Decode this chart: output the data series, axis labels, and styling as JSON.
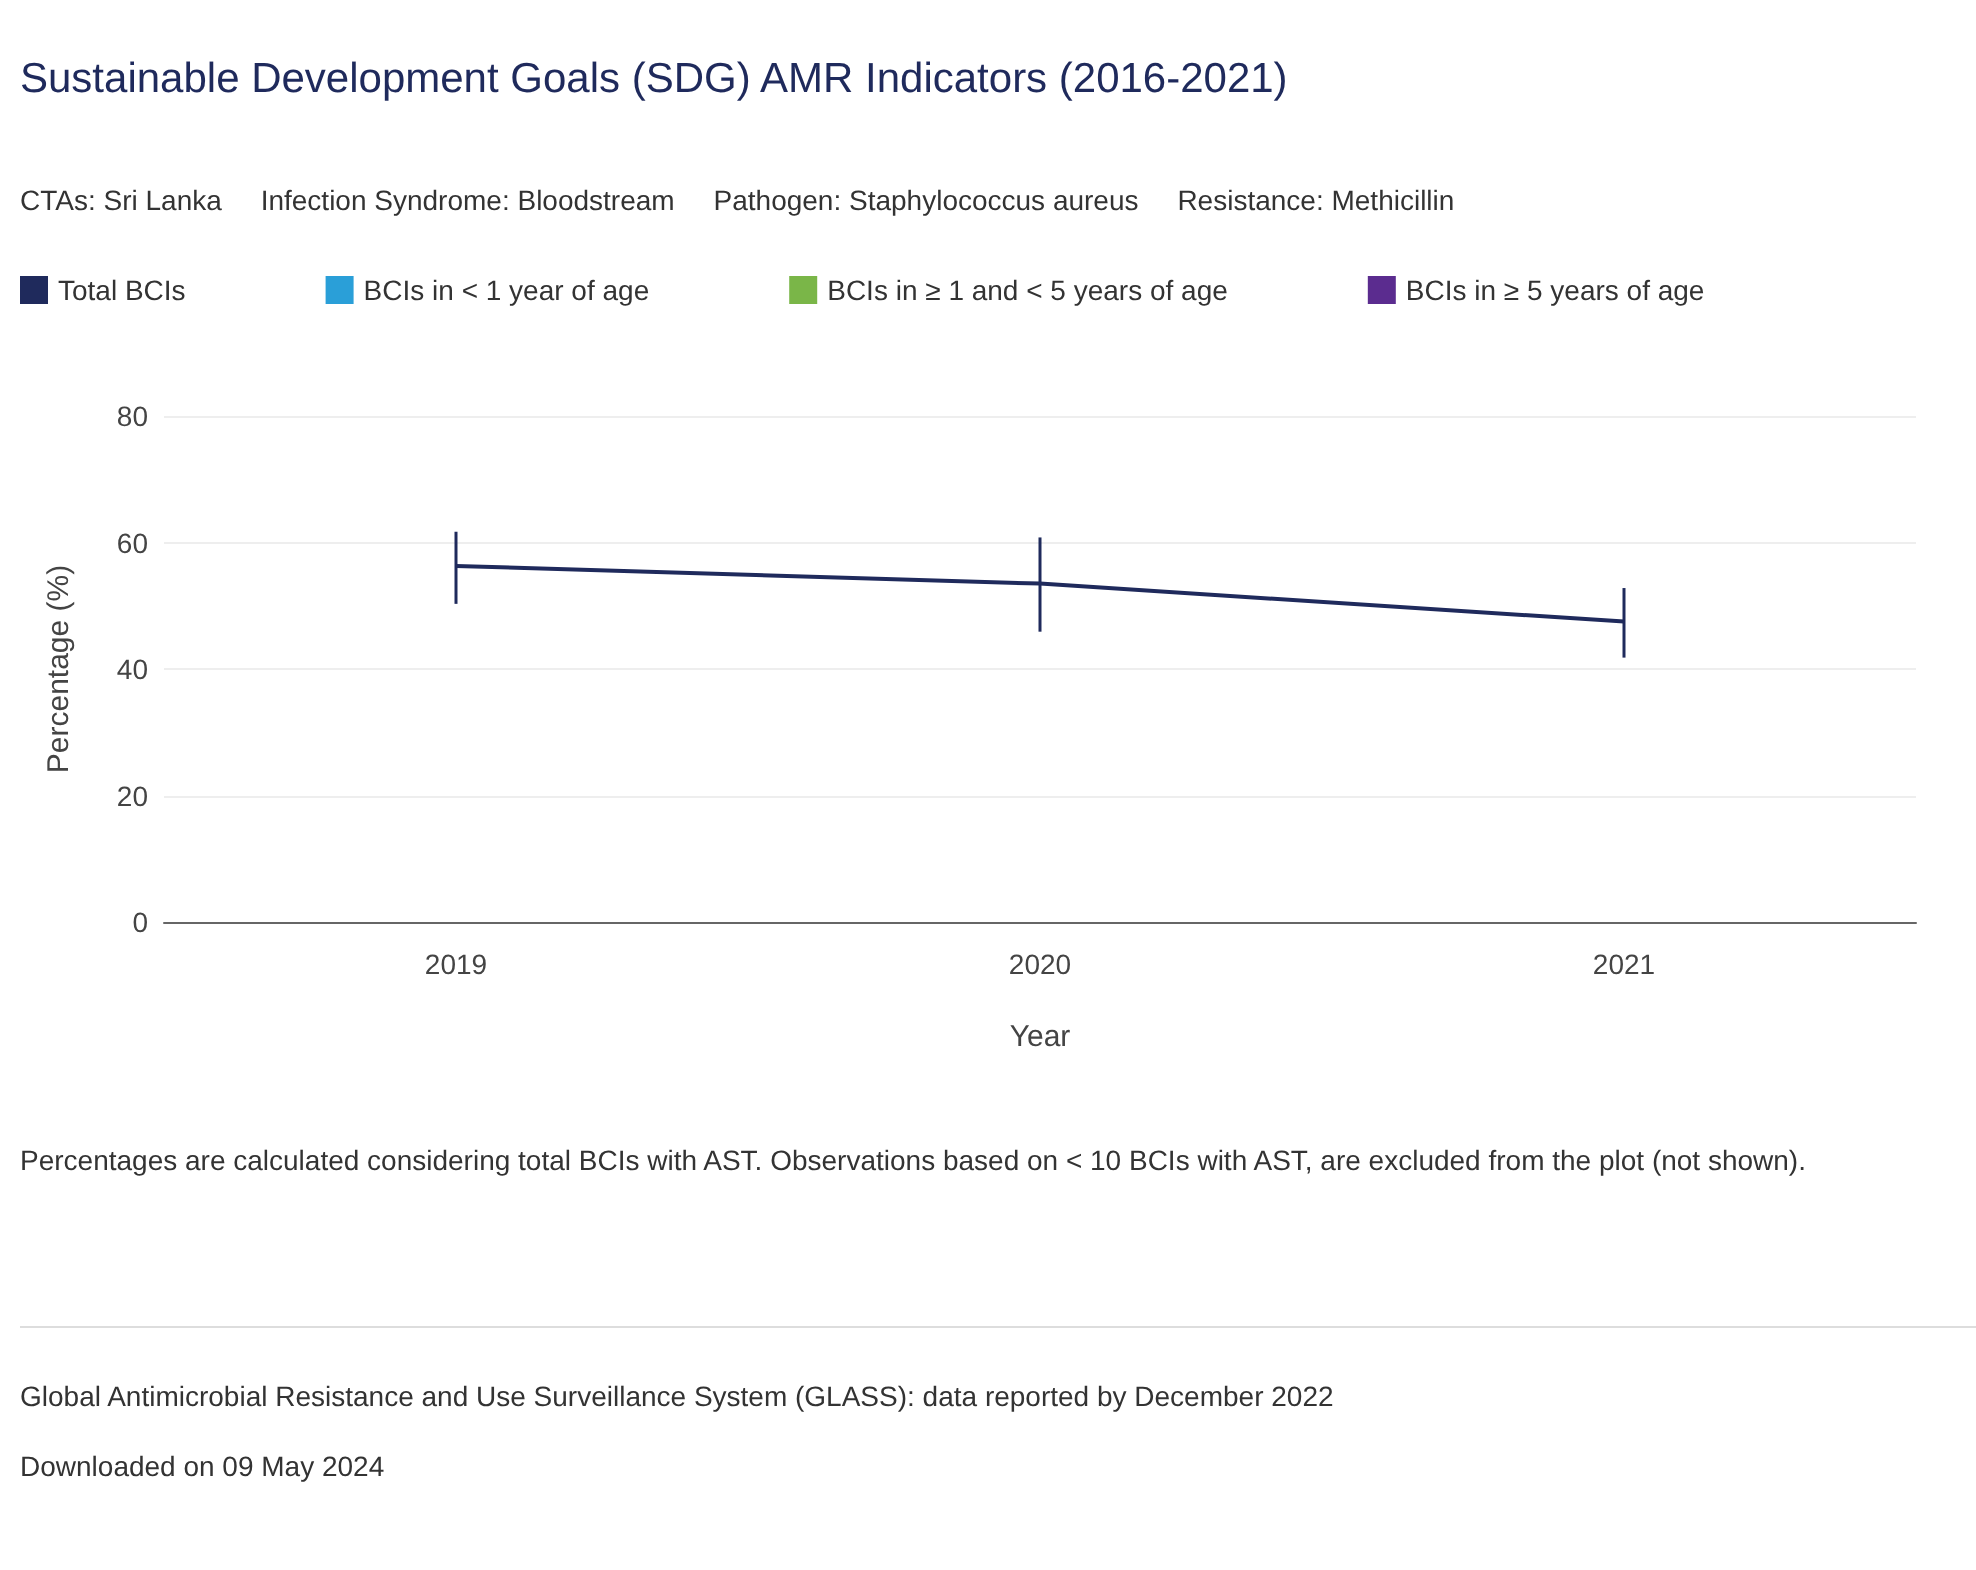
{
  "chart_data": {
    "type": "line",
    "title": "Sustainable Development Goals (SDG) AMR Indicators (2016-2021)",
    "subtitle": "CTAs: Sri Lanka     Infection Syndrome: Bloodstream     Pathogen: Staphylococcus aureus     Resistance: Methicillin",
    "xlabel": "Year",
    "ylabel": "Percentage (%)",
    "categories": [
      "2019",
      "2020",
      "2021"
    ],
    "series": [
      {
        "name": "Total BCIs",
        "color": "#1f2a5c",
        "values": [
          56.3,
          53.5,
          47.5
        ],
        "errors": [
          [
            50.3,
            61.7
          ],
          [
            45.9,
            60.8
          ],
          [
            41.8,
            52.8
          ]
        ]
      },
      {
        "name": "BCIs in < 1 year of age",
        "color": "#2a9fd8",
        "values": [
          null,
          null,
          null
        ]
      },
      {
        "name": "BCIs in ≥ 1 and < 5 years of age",
        "color": "#7ab648",
        "values": [
          null,
          null,
          null
        ]
      },
      {
        "name": "BCIs in ≥ 5 years of age",
        "color": "#5b2c8f",
        "values": [
          null,
          null,
          null
        ]
      }
    ],
    "ylim": [
      0,
      80
    ],
    "yticks": [
      0,
      20,
      40,
      60,
      80
    ],
    "grid": "y",
    "legend": "top",
    "marker": "none",
    "line_style": "solid",
    "annotations": [
      "Percentages are calculated considering total BCIs with AST. Observations based on < 10 BCIs with AST, are excluded from the plot (not shown).",
      "Global Antimicrobial Resistance and Use Surveillance System (GLASS): data reported by December 2022",
      "Downloaded on 09 May 2024"
    ]
  }
}
